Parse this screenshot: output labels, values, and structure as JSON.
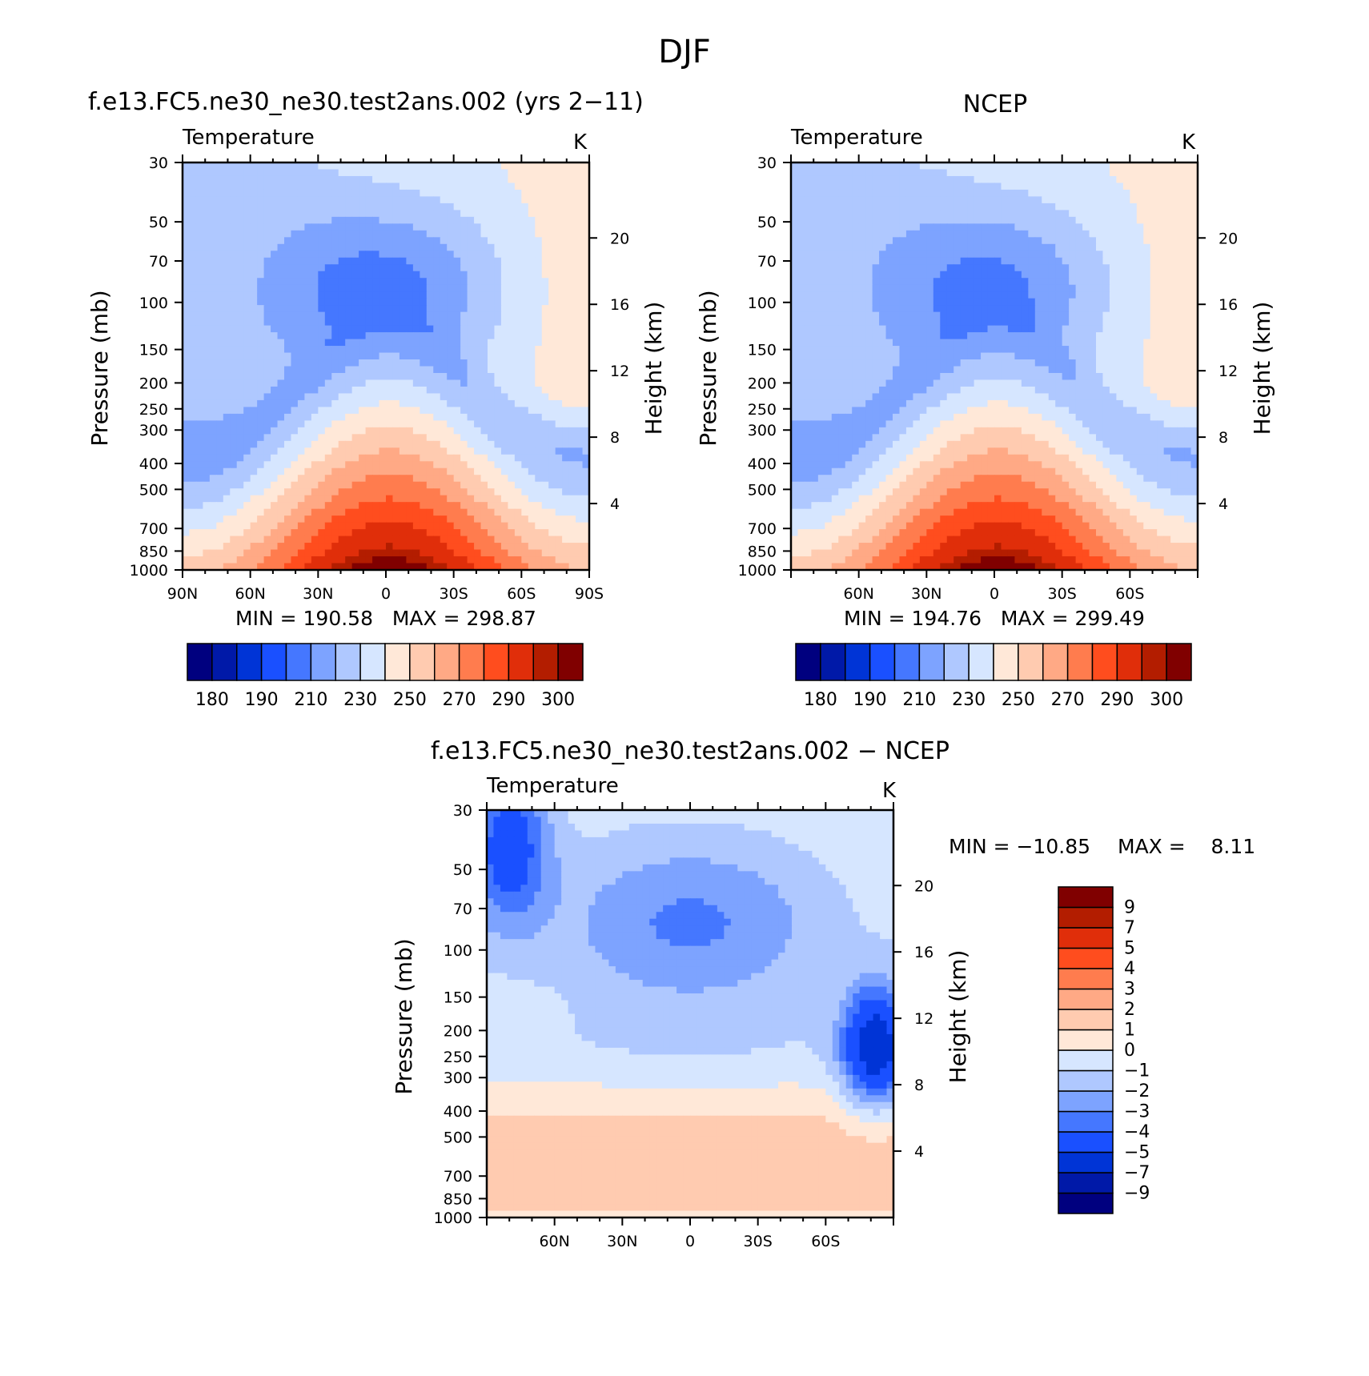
{
  "figure_title": "DJF",
  "colors": {
    "model": [
      "#00007f",
      "#0019a8",
      "#0034d6",
      "#1a50ff",
      "#4577ff",
      "#7da3ff",
      "#afc8ff",
      "#d6e6ff",
      "#ffe8d8",
      "#ffcbb0",
      "#ffa985",
      "#ff7c4e",
      "#ff4d1e",
      "#e02e0a",
      "#b31d00",
      "#800000"
    ],
    "diff": [
      "#00007f",
      "#0019a8",
      "#0034d6",
      "#1a50ff",
      "#4577ff",
      "#7da3ff",
      "#afc8ff",
      "#d6e6ff",
      "#ffe8d8",
      "#ffcbb0",
      "#ffa985",
      "#ff7c4e",
      "#ff4d1e",
      "#e02e0a",
      "#b31d00",
      "#800000"
    ]
  },
  "chart_data": [
    {
      "type": "heatmap",
      "panel": "model",
      "title": "f.e13.FC5.ne30_ne30.test2ans.002 (yrs 2−11)",
      "subtitle_left": "Temperature",
      "subtitle_right": "K",
      "ylabel": "Pressure (mb)",
      "ylabel_right": "Height (km)",
      "ylim": [
        1000,
        30
      ],
      "yticks": [
        "30",
        "50",
        "70",
        "100",
        "150",
        "200",
        "250",
        "300",
        "400",
        "500",
        "700",
        "850",
        "1000"
      ],
      "yticks_right": [
        "20",
        "16",
        "12",
        "8",
        "4"
      ],
      "xlim": [
        90,
        -90
      ],
      "xticks": [
        "90N",
        "60N",
        "30N",
        "0",
        "30S",
        "60S",
        "90S"
      ],
      "stats": "MIN = 190.58   MAX = 298.87",
      "min": 190.58,
      "max": 298.87,
      "levels": [
        175,
        180,
        185,
        190,
        200,
        210,
        220,
        230,
        240,
        250,
        260,
        270,
        280,
        290,
        295,
        300
      ],
      "colorbar_labels": [
        "180",
        "190",
        "210",
        "230",
        "250",
        "270",
        "290",
        "300"
      ]
    },
    {
      "type": "heatmap",
      "panel": "obs",
      "title": "NCEP",
      "subtitle_left": "Temperature",
      "subtitle_right": "K",
      "ylabel": "Pressure (mb)",
      "ylabel_right": "Height (km)",
      "ylim": [
        1000,
        30
      ],
      "yticks": [
        "30",
        "50",
        "70",
        "100",
        "150",
        "200",
        "250",
        "300",
        "400",
        "500",
        "700",
        "850",
        "1000"
      ],
      "yticks_right": [
        "20",
        "16",
        "12",
        "8",
        "4"
      ],
      "xlim": [
        90,
        -90
      ],
      "xticks": [
        "60N",
        "30N",
        "0",
        "30S",
        "60S"
      ],
      "stats": "MIN = 194.76   MAX = 299.49",
      "min": 194.76,
      "max": 299.49,
      "levels": [
        175,
        180,
        185,
        190,
        200,
        210,
        220,
        230,
        240,
        250,
        260,
        270,
        280,
        290,
        295,
        300
      ],
      "colorbar_labels": [
        "180",
        "190",
        "210",
        "230",
        "250",
        "270",
        "290",
        "300"
      ]
    },
    {
      "type": "heatmap",
      "panel": "diff",
      "title": "f.e13.FC5.ne30_ne30.test2ans.002 − NCEP",
      "subtitle_left": "Temperature",
      "subtitle_right": "K",
      "ylabel": "Pressure (mb)",
      "ylabel_right": "Height (km)",
      "ylim": [
        1000,
        30
      ],
      "yticks": [
        "30",
        "50",
        "70",
        "100",
        "150",
        "200",
        "250",
        "300",
        "400",
        "500",
        "700",
        "850",
        "1000"
      ],
      "yticks_right": [
        "20",
        "16",
        "12",
        "8",
        "4"
      ],
      "xlim": [
        90,
        -90
      ],
      "xticks": [
        "60N",
        "30N",
        "0",
        "30S",
        "60S"
      ],
      "stats_min": "MIN = −10.85",
      "stats_max": "MAX =    8.11",
      "min": -10.85,
      "max": 8.11,
      "levels": [
        -10,
        -9,
        -7,
        -5,
        -4,
        -3,
        -2,
        -1,
        0,
        1,
        2,
        3,
        4,
        5,
        7,
        9
      ],
      "colorbar_labels": [
        "9",
        "7",
        "5",
        "4",
        "3",
        "2",
        "1",
        "0",
        "−1",
        "−2",
        "−3",
        "−4",
        "−5",
        "−7",
        "−9"
      ]
    }
  ]
}
